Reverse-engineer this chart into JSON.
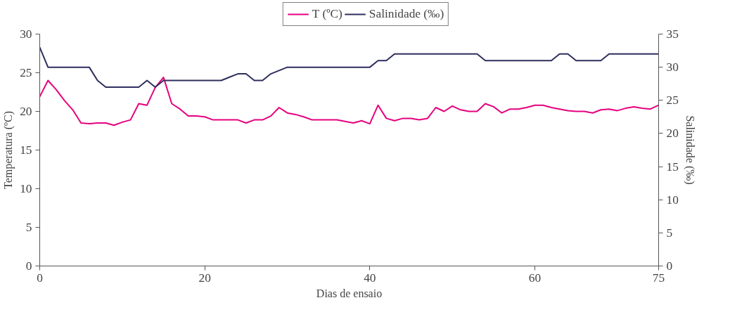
{
  "chart_data": {
    "type": "line",
    "xlabel": "Dias de ensaio",
    "ylabel": "Temperatura (ºC)",
    "y2label": "Salinidade (‰)",
    "x": [
      0,
      1,
      2,
      3,
      4,
      5,
      6,
      7,
      8,
      9,
      10,
      11,
      12,
      13,
      14,
      15,
      16,
      17,
      18,
      19,
      20,
      21,
      22,
      23,
      24,
      25,
      26,
      27,
      28,
      29,
      30,
      31,
      32,
      33,
      34,
      35,
      36,
      37,
      38,
      39,
      40,
      41,
      42,
      43,
      44,
      45,
      46,
      47,
      48,
      49,
      50,
      51,
      52,
      53,
      54,
      55,
      56,
      57,
      58,
      59,
      60,
      61,
      62,
      63,
      64,
      65,
      66,
      67,
      68,
      69,
      70,
      71,
      72,
      73,
      74,
      75
    ],
    "series": [
      {
        "name": "T (ºC)",
        "color": "#e6007e",
        "values": [
          21.9,
          24.0,
          22.8,
          21.4,
          20.2,
          18.5,
          18.4,
          18.5,
          18.5,
          18.2,
          18.6,
          18.9,
          21.0,
          20.8,
          23.1,
          24.4,
          21.0,
          20.3,
          19.4,
          19.4,
          19.3,
          18.9,
          18.9,
          18.9,
          18.9,
          18.5,
          18.9,
          18.9,
          19.4,
          20.5,
          19.8,
          19.6,
          19.3,
          18.9,
          18.9,
          18.9,
          18.9,
          18.7,
          18.5,
          18.8,
          18.4,
          20.8,
          19.1,
          18.8,
          19.1,
          19.1,
          18.9,
          19.1,
          20.5,
          20.0,
          20.7,
          20.2,
          20.0,
          20.0,
          21.0,
          20.6,
          19.8,
          20.3,
          20.3,
          20.5,
          20.8,
          20.8,
          20.5,
          20.3,
          20.1,
          20.0,
          20.0,
          19.8,
          20.2,
          20.3,
          20.1,
          20.4,
          20.6,
          20.4,
          20.3,
          20.8
        ]
      },
      {
        "name": "Salinidade (‰)",
        "color": "#2e2e5e",
        "axis": "y2",
        "values": [
          33,
          30,
          30,
          30,
          30,
          30,
          30,
          28,
          27,
          27,
          27,
          27,
          27,
          28,
          27,
          28,
          28,
          28,
          28,
          28,
          28,
          28,
          28,
          28.5,
          29,
          29,
          28,
          28,
          29,
          29.5,
          30,
          30,
          30,
          30,
          30,
          30,
          30,
          30,
          30,
          30,
          30,
          31,
          31,
          32,
          32,
          32,
          32,
          32,
          32,
          32,
          32,
          32,
          32,
          32,
          31,
          31,
          31,
          31,
          31,
          31,
          31,
          31,
          31,
          32,
          32,
          31,
          31,
          31,
          31,
          32,
          32,
          32,
          32,
          32,
          32,
          32
        ]
      }
    ],
    "xlim": [
      0,
      75
    ],
    "xticks": [
      0,
      20,
      40,
      60,
      75
    ],
    "ylim": [
      0,
      30
    ],
    "yticks": [
      0,
      5,
      10,
      15,
      20,
      25,
      30
    ],
    "y2lim": [
      0,
      35
    ],
    "y2ticks": [
      0,
      5,
      10,
      15,
      20,
      25,
      30,
      35
    ],
    "grid": false,
    "legend": "top",
    "marker": "none",
    "line_style": "solid"
  }
}
